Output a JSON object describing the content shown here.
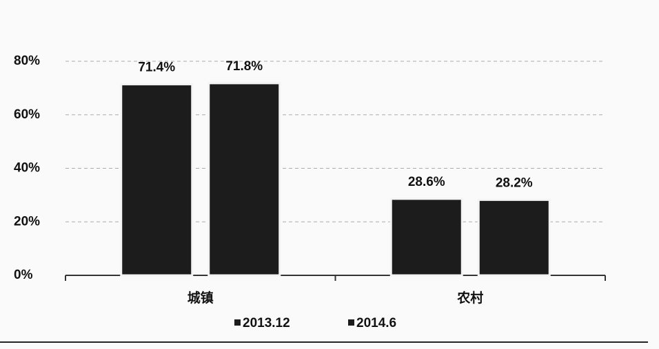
{
  "chart_data": {
    "type": "bar",
    "categories": [
      "城镇",
      "农村"
    ],
    "series": [
      {
        "name": "2013.12",
        "color": "#1c1c1c",
        "values": [
          71.4,
          28.6
        ],
        "value_labels": [
          "71.4%",
          "28.6%"
        ]
      },
      {
        "name": "2014.6",
        "color": "#1c1c1c",
        "values": [
          71.8,
          28.2
        ],
        "value_labels": [
          "71.8%",
          "28.2%"
        ]
      }
    ],
    "ylim": [
      0,
      80
    ],
    "yticks": [
      {
        "value": 0,
        "label": "0%"
      },
      {
        "value": 20,
        "label": "20%"
      },
      {
        "value": 40,
        "label": "40%"
      },
      {
        "value": 60,
        "label": "60%"
      },
      {
        "value": 80,
        "label": "80%"
      }
    ],
    "grid": true
  }
}
